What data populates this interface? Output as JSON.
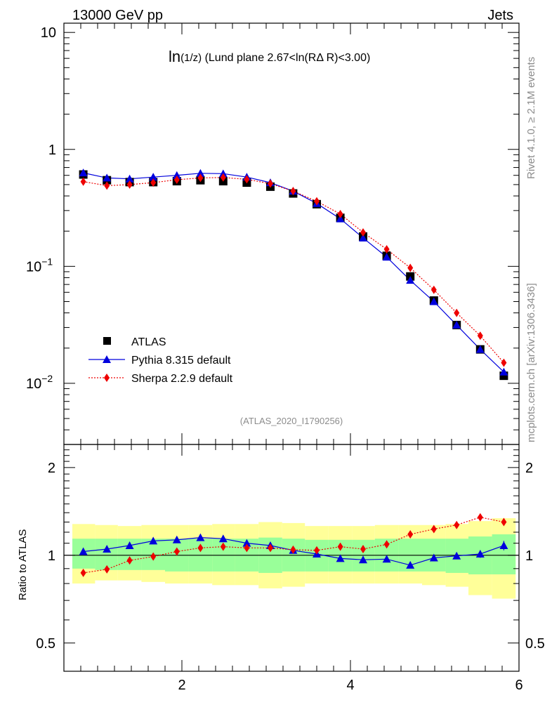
{
  "header": {
    "left": "13000 GeV pp",
    "right": "Jets"
  },
  "side_notes": {
    "top": "Rivet 4.1.0, ≥ 2.1M events",
    "bottom": "mcplots.cern.ch [arXiv:1306.3436]"
  },
  "colors": {
    "atlas": "#000000",
    "pythia": "#0000dd",
    "sherpa": "#ee0000",
    "band_outer": "#ffff99",
    "band_inner": "#99ff99"
  },
  "chart_data": [
    {
      "type": "line",
      "title": "ln(1/z) (Lund plane 2.67<ln(RΔ R)<3.00)",
      "title_parts": {
        "main": "ln",
        "arg": "(1/z)",
        "rest": " (Lund plane 2.67<ln(RΔ R)<3.00)"
      },
      "annotation": "(ATLAS_2020_I1790256)",
      "xlabel": "",
      "ylabel": "",
      "yscale": "log",
      "xlim": [
        0.6,
        6.0
      ],
      "ylim": [
        0.003,
        12
      ],
      "y_tick_labels": [
        {
          "value": 10,
          "base": "10",
          "exp": ""
        },
        {
          "value": 1,
          "base": "1",
          "exp": ""
        },
        {
          "value": 0.1,
          "base": "10",
          "exp": "−1"
        },
        {
          "value": 0.01,
          "base": "10",
          "exp": "−2"
        }
      ],
      "x": [
        0.83,
        1.11,
        1.38,
        1.66,
        1.94,
        2.22,
        2.49,
        2.77,
        3.05,
        3.32,
        3.6,
        3.88,
        4.15,
        4.43,
        4.71,
        4.99,
        5.26,
        5.54,
        5.82
      ],
      "series": [
        {
          "name": "ATLAS",
          "style": "square",
          "values": [
            0.61,
            0.545,
            0.525,
            0.525,
            0.535,
            0.545,
            0.535,
            0.52,
            0.48,
            0.42,
            0.34,
            0.26,
            0.18,
            0.123,
            0.082,
            0.051,
            0.0315,
            0.0195,
            0.0116
          ]
        },
        {
          "name": "Pythia 8.315 default",
          "style": "triangle-line",
          "values": [
            0.63,
            0.57,
            0.56,
            0.58,
            0.6,
            0.625,
            0.62,
            0.58,
            0.52,
            0.44,
            0.345,
            0.255,
            0.175,
            0.12,
            0.076,
            0.05,
            0.0315,
            0.0195,
            0.0125
          ]
        },
        {
          "name": "Sherpa 2.2.9 default",
          "style": "diamond-dotted",
          "values": [
            0.53,
            0.49,
            0.5,
            0.52,
            0.55,
            0.57,
            0.575,
            0.555,
            0.51,
            0.44,
            0.36,
            0.28,
            0.195,
            0.14,
            0.097,
            0.063,
            0.04,
            0.0255,
            0.015
          ]
        }
      ],
      "legend_position": "lower-left"
    },
    {
      "type": "line",
      "title": "",
      "xlabel": "",
      "ylabel": "Ratio to ATLAS",
      "yscale": "log",
      "xlim": [
        0.6,
        6.0
      ],
      "ylim": [
        0.4,
        2.4
      ],
      "x_tick_labels": [
        "2",
        "4",
        "6"
      ],
      "x_ticks": [
        2,
        4,
        6
      ],
      "y_tick_labels": [
        "2",
        "1",
        "0.5"
      ],
      "y_ticks": [
        2,
        1,
        0.5
      ],
      "bin_edges": [
        0.7,
        0.97,
        1.24,
        1.52,
        1.8,
        2.08,
        2.36,
        2.63,
        2.91,
        3.19,
        3.46,
        3.74,
        4.02,
        4.29,
        4.57,
        4.85,
        5.13,
        5.4,
        5.68,
        5.96
      ],
      "band_inner_up": [
        1.14,
        1.14,
        1.14,
        1.14,
        1.14,
        1.14,
        1.14,
        1.14,
        1.15,
        1.14,
        1.13,
        1.13,
        1.13,
        1.14,
        1.14,
        1.14,
        1.14,
        1.16,
        1.18
      ],
      "band_inner_down": [
        0.9,
        0.89,
        0.89,
        0.89,
        0.88,
        0.88,
        0.88,
        0.88,
        0.87,
        0.88,
        0.88,
        0.88,
        0.88,
        0.88,
        0.88,
        0.88,
        0.87,
        0.86,
        0.86
      ],
      "band_outer_up": [
        1.28,
        1.27,
        1.26,
        1.27,
        1.27,
        1.27,
        1.28,
        1.28,
        1.3,
        1.29,
        1.26,
        1.26,
        1.26,
        1.27,
        1.27,
        1.27,
        1.28,
        1.31,
        1.34
      ],
      "band_outer_down": [
        0.8,
        0.82,
        0.82,
        0.81,
        0.8,
        0.8,
        0.79,
        0.79,
        0.77,
        0.78,
        0.8,
        0.8,
        0.8,
        0.8,
        0.8,
        0.79,
        0.78,
        0.73,
        0.71
      ],
      "x": [
        0.83,
        1.11,
        1.38,
        1.66,
        1.94,
        2.22,
        2.49,
        2.77,
        3.05,
        3.32,
        3.6,
        3.88,
        4.15,
        4.43,
        4.71,
        4.99,
        5.26,
        5.54,
        5.82
      ],
      "series": [
        {
          "name": "Pythia 8.315 default",
          "values": [
            1.03,
            1.05,
            1.08,
            1.12,
            1.13,
            1.15,
            1.14,
            1.1,
            1.08,
            1.04,
            1.01,
            0.975,
            0.965,
            0.97,
            0.925,
            0.98,
            0.995,
            1.01,
            1.08
          ],
          "errors": [
            0,
            0,
            0,
            0,
            0,
            0,
            0,
            0,
            0,
            0,
            0,
            0,
            0,
            0,
            0,
            0,
            0.02,
            0.03,
            0.04
          ]
        },
        {
          "name": "Sherpa 2.2.9 default",
          "values": [
            0.87,
            0.895,
            0.96,
            0.99,
            1.03,
            1.06,
            1.07,
            1.06,
            1.06,
            1.045,
            1.04,
            1.07,
            1.05,
            1.09,
            1.18,
            1.23,
            1.27,
            1.35,
            1.3
          ],
          "errors": [
            0,
            0,
            0,
            0,
            0,
            0,
            0,
            0,
            0,
            0,
            0,
            0,
            0,
            0,
            0,
            0,
            0,
            0,
            0.03
          ]
        }
      ]
    }
  ]
}
